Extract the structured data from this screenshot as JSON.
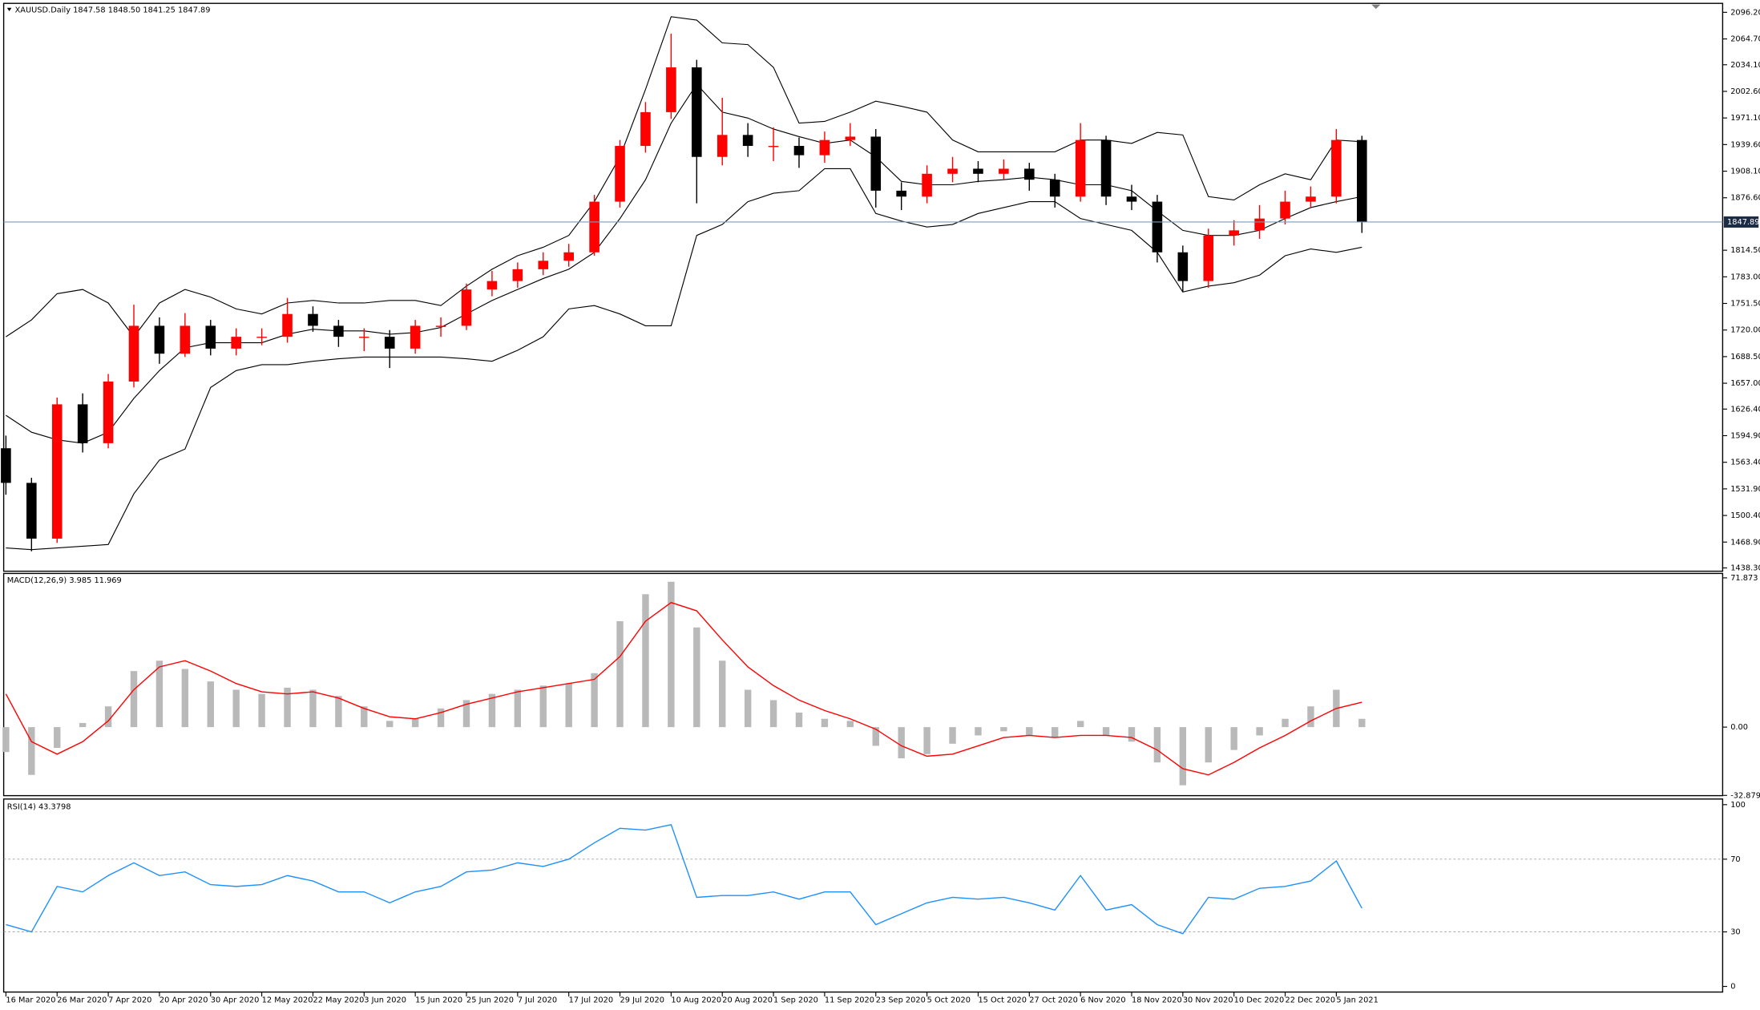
{
  "chart_data": [
    {
      "type": "candlestick",
      "title": "XAUUSD.Daily",
      "subtitle": "1847.58 1848.50 1841.25 1847.89",
      "x": [
        0,
        4,
        8,
        12,
        16,
        20,
        24,
        28,
        32,
        36,
        40,
        44,
        48,
        52,
        56,
        60,
        64,
        68,
        72,
        76,
        80,
        84,
        88,
        92,
        96,
        100,
        104,
        108,
        112,
        116,
        120,
        124,
        128,
        132,
        136,
        140,
        144,
        148,
        152,
        156,
        160,
        164,
        168,
        172,
        176,
        180,
        184,
        188,
        192,
        196,
        200,
        204,
        208,
        212
      ],
      "open": [
        1580,
        1539,
        1473,
        1632,
        1586,
        1659,
        1725,
        1692,
        1725,
        1698,
        1712,
        1712,
        1739,
        1725,
        1712,
        1712,
        1698,
        1725,
        1725,
        1768,
        1778,
        1792,
        1802,
        1812,
        1872,
        1938,
        1978,
        2031,
        1925,
        1951,
        1938,
        1938,
        1927,
        1945,
        1949,
        1885,
        1878,
        1905,
        1911,
        1905,
        1911,
        1898,
        1878,
        1945,
        1878,
        1872,
        1812,
        1778,
        1832,
        1838,
        1852,
        1872,
        1878,
        1945
      ],
      "high": [
        1595,
        1545,
        1640,
        1645,
        1668,
        1750,
        1735,
        1740,
        1732,
        1722,
        1722,
        1758,
        1748,
        1732,
        1722,
        1720,
        1732,
        1735,
        1775,
        1790,
        1800,
        1812,
        1822,
        1880,
        1945,
        1990,
        2071,
        2040,
        1995,
        1965,
        1960,
        1948,
        1955,
        1965,
        1958,
        1895,
        1915,
        1925,
        1920,
        1922,
        1918,
        1905,
        1965,
        1950,
        1892,
        1880,
        1820,
        1840,
        1850,
        1868,
        1885,
        1890,
        1958,
        1950
      ],
      "low": [
        1525,
        1458,
        1468,
        1575,
        1580,
        1652,
        1680,
        1688,
        1690,
        1690,
        1702,
        1705,
        1718,
        1700,
        1695,
        1675,
        1692,
        1712,
        1720,
        1760,
        1770,
        1785,
        1795,
        1808,
        1865,
        1930,
        1970,
        1870,
        1915,
        1925,
        1920,
        1912,
        1918,
        1938,
        1865,
        1862,
        1870,
        1895,
        1895,
        1898,
        1885,
        1865,
        1872,
        1868,
        1862,
        1800,
        1765,
        1770,
        1820,
        1828,
        1845,
        1865,
        1870,
        1835
      ],
      "close": [
        1539,
        1473,
        1632,
        1586,
        1659,
        1725,
        1692,
        1725,
        1698,
        1712,
        1712,
        1739,
        1725,
        1712,
        1712,
        1698,
        1725,
        1725,
        1768,
        1778,
        1792,
        1802,
        1812,
        1872,
        1938,
        1978,
        2031,
        1925,
        1951,
        1938,
        1938,
        1927,
        1945,
        1949,
        1885,
        1878,
        1905,
        1911,
        1905,
        1911,
        1898,
        1878,
        1945,
        1878,
        1872,
        1812,
        1778,
        1832,
        1838,
        1852,
        1872,
        1878,
        1945,
        1848
      ],
      "bollinger_upper": [
        1712,
        1732,
        1763,
        1768,
        1752,
        1712,
        1752,
        1768,
        1759,
        1745,
        1739,
        1752,
        1755,
        1752,
        1752,
        1755,
        1755,
        1749,
        1772,
        1792,
        1808,
        1818,
        1832,
        1872,
        1925,
        2005,
        2091,
        2087,
        2060,
        2058,
        2031,
        1965,
        1967,
        1978,
        1991,
        1985,
        1978,
        1945,
        1931,
        1931,
        1931,
        1931,
        1945,
        1945,
        1941,
        1954,
        1951,
        1878,
        1874,
        1892,
        1905,
        1898,
        1945,
        1943
      ],
      "bollinger_middle": [
        1619,
        1599,
        1590,
        1586,
        1599,
        1639,
        1672,
        1699,
        1705,
        1705,
        1705,
        1715,
        1721,
        1719,
        1719,
        1715,
        1717,
        1723,
        1739,
        1755,
        1768,
        1781,
        1792,
        1812,
        1852,
        1898,
        1965,
        2011,
        1978,
        1971,
        1958,
        1949,
        1941,
        1945,
        1925,
        1896,
        1892,
        1892,
        1896,
        1898,
        1901,
        1898,
        1892,
        1892,
        1885,
        1861,
        1838,
        1832,
        1832,
        1838,
        1852,
        1865,
        1872,
        1878
      ],
      "bollinger_lower": [
        1462,
        1460,
        1462,
        1464,
        1466,
        1526,
        1566,
        1579,
        1652,
        1672,
        1679,
        1679,
        1683,
        1686,
        1688,
        1688,
        1688,
        1688,
        1686,
        1683,
        1696,
        1712,
        1745,
        1749,
        1739,
        1725,
        1725,
        1832,
        1845,
        1872,
        1882,
        1885,
        1911,
        1911,
        1858,
        1849,
        1842,
        1845,
        1858,
        1865,
        1872,
        1872,
        1852,
        1845,
        1838,
        1812,
        1765,
        1772,
        1776,
        1785,
        1808,
        1816,
        1812,
        1818
      ],
      "up_color": "#ff0000",
      "down_color": "#000000",
      "band_color": "#000000",
      "last_price": 1847.89,
      "last_price_color": "#7f9bb8",
      "xlim": [
        -0.35,
        268.4
      ],
      "ylim": [
        1434.4,
        2106.8
      ],
      "yticks": [
        {
          "value": 2096.2,
          "label": "2096.20"
        },
        {
          "value": 2064.7,
          "label": "2064.70"
        },
        {
          "value": 2034.1,
          "label": "2034.10"
        },
        {
          "value": 2002.6,
          "label": "2002.60"
        },
        {
          "value": 1971.1,
          "label": "1971.10"
        },
        {
          "value": 1939.6,
          "label": "1939.60"
        },
        {
          "value": 1908.1,
          "label": "1908.10"
        },
        {
          "value": 1876.6,
          "label": "1876.60"
        },
        {
          "value": 1814.5,
          "label": "1814.50"
        },
        {
          "value": 1783,
          "label": "1783.00"
        },
        {
          "value": 1751.5,
          "label": "1751.50"
        },
        {
          "value": 1720,
          "label": "1720.00"
        },
        {
          "value": 1688.5,
          "label": "1688.50"
        },
        {
          "value": 1657,
          "label": "1657.00"
        },
        {
          "value": 1626.4,
          "label": "1626.40"
        },
        {
          "value": 1594.9,
          "label": "1594.90"
        },
        {
          "value": 1563.4,
          "label": "1563.40"
        },
        {
          "value": 1531.9,
          "label": "1531.90"
        },
        {
          "value": 1500.4,
          "label": "1500.40"
        },
        {
          "value": 1468.9,
          "label": "1468.90"
        },
        {
          "value": 1438.3,
          "label": "1438.30"
        }
      ]
    },
    {
      "type": "macd",
      "title": "MACD(12,26,9)",
      "subtitle": "3.985 11.969",
      "histogram": [
        -12,
        -23,
        -10,
        2,
        10,
        27,
        32,
        28,
        22,
        18,
        16,
        19,
        18,
        15,
        10,
        3,
        4,
        9,
        13,
        16,
        18,
        20,
        21,
        26,
        51,
        64,
        70,
        48,
        32,
        18,
        13,
        7,
        4,
        3,
        -9,
        -15,
        -13,
        -8,
        -4,
        -2,
        -4,
        -5,
        3,
        -4,
        -7,
        -17,
        -28,
        -17,
        -11,
        -4,
        4,
        10,
        18,
        4
      ],
      "signal": [
        16,
        -7,
        -13,
        -7,
        3,
        18,
        29,
        32,
        27,
        21,
        17,
        16,
        17,
        14,
        9,
        5,
        4,
        7,
        11,
        14,
        17,
        19,
        21,
        23,
        34,
        51,
        60,
        56,
        42,
        29,
        20,
        13,
        8,
        4,
        -1,
        -9,
        -14,
        -13,
        -9,
        -5,
        -4,
        -5,
        -4,
        -4,
        -5,
        -11,
        -20,
        -23,
        -17,
        -10,
        -4,
        3,
        9,
        12
      ],
      "histogram_color": "#b9b9b9",
      "signal_color": "#ff0000",
      "ylim": [
        -33,
        74
      ],
      "yticks": [
        71.873,
        {
          "value": 0,
          "label": "0.00"
        },
        -32.879
      ]
    },
    {
      "type": "rsi",
      "title": "RSI(14)",
      "subtitle": "43.3798",
      "values": [
        34,
        30,
        55,
        52,
        61,
        68,
        61,
        63,
        56,
        55,
        56,
        61,
        58,
        52,
        52,
        46,
        52,
        55,
        63,
        64,
        68,
        66,
        70,
        79,
        87,
        86,
        89,
        49,
        50,
        50,
        52,
        48,
        52,
        52,
        34,
        40,
        46,
        49,
        48,
        49,
        46,
        42,
        61,
        42,
        45,
        34,
        29,
        49,
        48,
        54,
        55,
        58,
        69,
        43
      ],
      "color": "#1e90ff",
      "levels": [
        70,
        30
      ],
      "ylim": [
        -3.1,
        103.1
      ],
      "yticks": [
        100,
        70,
        30,
        0
      ],
      "xticks": [
        {
          "value": 0,
          "label": "16 Mar 2020"
        },
        {
          "value": 8,
          "label": "26 Mar 2020"
        },
        {
          "value": 16,
          "label": "7 Apr 2020"
        },
        {
          "value": 24,
          "label": "20 Apr 2020"
        },
        {
          "value": 32,
          "label": "30 Apr 2020"
        },
        {
          "value": 40,
          "label": "12 May 2020"
        },
        {
          "value": 48,
          "label": "22 May 2020"
        },
        {
          "value": 56,
          "label": "3 Jun 2020"
        },
        {
          "value": 64,
          "label": "15 Jun 2020"
        },
        {
          "value": 72,
          "label": "25 Jun 2020"
        },
        {
          "value": 80,
          "label": "7 Jul 2020"
        },
        {
          "value": 88,
          "label": "17 Jul 2020"
        },
        {
          "value": 96,
          "label": "29 Jul 2020"
        },
        {
          "value": 104,
          "label": "10 Aug 2020"
        },
        {
          "value": 112,
          "label": "20 Aug 2020"
        },
        {
          "value": 120,
          "label": "1 Sep 2020"
        },
        {
          "value": 128,
          "label": "11 Sep 2020"
        },
        {
          "value": 136,
          "label": "23 Sep 2020"
        },
        {
          "value": 144,
          "label": "5 Oct 2020"
        },
        {
          "value": 152,
          "label": "15 Oct 2020"
        },
        {
          "value": 160,
          "label": "27 Oct 2020"
        },
        {
          "value": 168,
          "label": "6 Nov 2020"
        },
        {
          "value": 176,
          "label": "18 Nov 2020"
        },
        {
          "value": 184,
          "label": "30 Nov 2020"
        },
        {
          "value": 192,
          "label": "10 Dec 2020"
        },
        {
          "value": 200,
          "label": "22 Dec 2020"
        },
        {
          "value": 208,
          "label": "5 Jan 2021"
        }
      ]
    }
  ]
}
